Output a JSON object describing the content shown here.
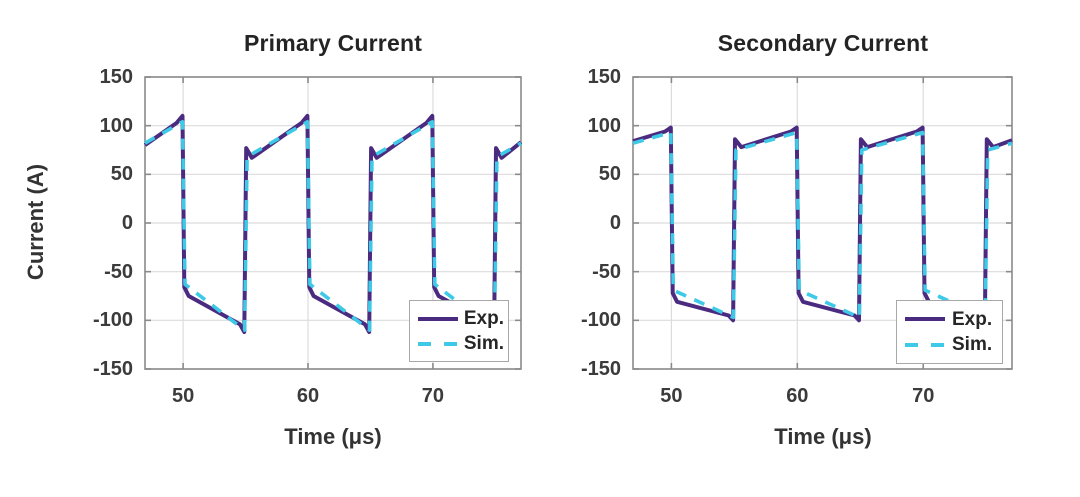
{
  "figure": {
    "background": "#ffffff",
    "colors": {
      "exp_line": "#4b2b80",
      "sim_line": "#3ec9e6",
      "grid": "#dcdcdc",
      "axis_box": "#8a8a8a",
      "text": "#2b2b2b",
      "legend_border": "#a8a8a8"
    }
  },
  "chart_data": [
    {
      "type": "line",
      "title": "Primary Current",
      "xlabel": "Time (μs)",
      "ylabel": "Current (A)",
      "xlim": [
        46.95,
        77.05
      ],
      "ylim": [
        -150,
        150
      ],
      "xticks": [
        50,
        60,
        70
      ],
      "yticks": [
        150,
        100,
        50,
        0,
        -50,
        -100,
        -150
      ],
      "grid": true,
      "legend": {
        "position": "lower right",
        "entries": [
          {
            "label": "Exp.",
            "style": "solid",
            "color": "#4b2b80"
          },
          {
            "label": "Sim.",
            "style": "dashed",
            "color": "#3ec9e6"
          }
        ]
      },
      "series": [
        {
          "name": "Exp.",
          "color": "#4b2b80",
          "style": "solid",
          "width": 4,
          "points": [
            [
              46.95,
              80
            ],
            [
              49.5,
              103
            ],
            [
              49.95,
              110
            ],
            [
              50.1,
              -66
            ],
            [
              50.45,
              -75
            ],
            [
              54.55,
              -104
            ],
            [
              54.9,
              -112
            ],
            [
              55.05,
              77
            ],
            [
              55.5,
              67
            ],
            [
              59.5,
              103
            ],
            [
              59.95,
              110
            ],
            [
              60.1,
              -66
            ],
            [
              60.45,
              -75
            ],
            [
              64.55,
              -104
            ],
            [
              64.9,
              -112
            ],
            [
              65.05,
              77
            ],
            [
              65.5,
              67
            ],
            [
              69.5,
              103
            ],
            [
              69.95,
              110
            ],
            [
              70.1,
              -66
            ],
            [
              70.45,
              -75
            ],
            [
              74.55,
              -104
            ],
            [
              74.9,
              -112
            ],
            [
              75.05,
              77
            ],
            [
              75.5,
              67
            ],
            [
              77.05,
              83
            ]
          ]
        },
        {
          "name": "Sim.",
          "color": "#3ec9e6",
          "style": "dashed",
          "width": 3.6,
          "points": [
            [
              46.95,
              82
            ],
            [
              49.95,
              104
            ],
            [
              50.15,
              -63
            ],
            [
              54.92,
              -110
            ],
            [
              55.12,
              68
            ],
            [
              59.95,
              104
            ],
            [
              60.15,
              -63
            ],
            [
              64.92,
              -110
            ],
            [
              65.12,
              68
            ],
            [
              69.95,
              104
            ],
            [
              70.15,
              -63
            ],
            [
              74.92,
              -110
            ],
            [
              75.12,
              68
            ],
            [
              77.05,
              82
            ]
          ]
        }
      ]
    },
    {
      "type": "line",
      "title": "Secondary Current",
      "xlabel": "Time (μs)",
      "ylabel": "",
      "xlim": [
        46.95,
        77.05
      ],
      "ylim": [
        -150,
        150
      ],
      "xticks": [
        50,
        60,
        70
      ],
      "yticks": [
        150,
        100,
        50,
        0,
        -50,
        -100,
        -150
      ],
      "grid": true,
      "legend": {
        "position": "lower right",
        "entries": [
          {
            "label": "Exp.",
            "style": "solid",
            "color": "#4b2b80"
          },
          {
            "label": "Sim.",
            "style": "dashed",
            "color": "#3ec9e6"
          }
        ]
      },
      "series": [
        {
          "name": "Exp.",
          "color": "#4b2b80",
          "style": "solid",
          "width": 4,
          "points": [
            [
              46.95,
              84
            ],
            [
              49.5,
              94
            ],
            [
              49.95,
              98
            ],
            [
              50.1,
              -72
            ],
            [
              50.45,
              -81
            ],
            [
              54.55,
              -95
            ],
            [
              54.9,
              -100
            ],
            [
              55.05,
              86
            ],
            [
              55.55,
              78
            ],
            [
              59.5,
              94
            ],
            [
              59.95,
              98
            ],
            [
              60.1,
              -72
            ],
            [
              60.45,
              -81
            ],
            [
              64.55,
              -95
            ],
            [
              64.9,
              -100
            ],
            [
              65.05,
              86
            ],
            [
              65.55,
              78
            ],
            [
              69.5,
              94
            ],
            [
              69.95,
              98
            ],
            [
              70.1,
              -72
            ],
            [
              70.45,
              -81
            ],
            [
              74.55,
              -95
            ],
            [
              74.9,
              -100
            ],
            [
              75.05,
              86
            ],
            [
              75.55,
              78
            ],
            [
              77.05,
              85
            ]
          ]
        },
        {
          "name": "Sim.",
          "color": "#3ec9e6",
          "style": "dashed",
          "width": 3.6,
          "points": [
            [
              46.95,
              82
            ],
            [
              49.95,
              93
            ],
            [
              50.15,
              -69
            ],
            [
              54.92,
              -97
            ],
            [
              55.12,
              75
            ],
            [
              59.95,
              93
            ],
            [
              60.15,
              -69
            ],
            [
              64.92,
              -97
            ],
            [
              65.12,
              75
            ],
            [
              69.95,
              93
            ],
            [
              70.15,
              -69
            ],
            [
              74.92,
              -97
            ],
            [
              75.12,
              75
            ],
            [
              77.05,
              82
            ]
          ]
        }
      ]
    }
  ]
}
